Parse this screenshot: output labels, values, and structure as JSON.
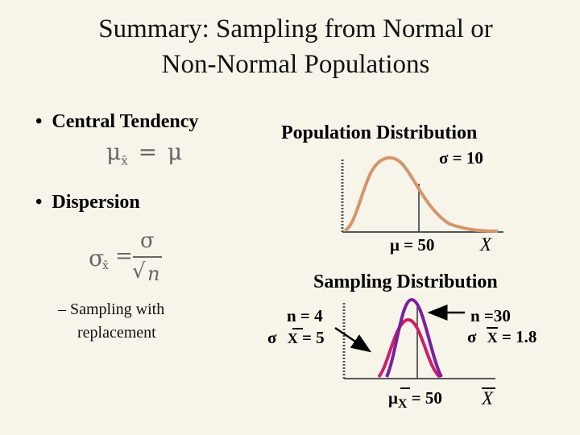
{
  "title_line1": "Summary: Sampling from Normal or",
  "title_line2": "Non-Normal Populations",
  "bullets": {
    "central": "Central Tendency",
    "dispersion": "Dispersion",
    "sub_line1": "– Sampling with",
    "sub_line2": "replacement"
  },
  "formulas": {
    "mean": {
      "mu": "μ",
      "sub": "x̄",
      "eq": "=",
      "rhs": "μ"
    },
    "se": {
      "sigma": "σ",
      "sub": "x̄",
      "eq": "=",
      "num": "σ",
      "root": "√",
      "den": "n"
    }
  },
  "population": {
    "heading": "Population Distribution",
    "sigma": "σ = 10",
    "mu": "μ = 50",
    "xvar": "X"
  },
  "sampling": {
    "heading": "Sampling Distribution",
    "left_n": "n = 4",
    "left_sigma": "σ",
    "left_x": "X",
    "left_val": "= 5",
    "right_n": "n =30",
    "right_sigma": "σ",
    "right_x": "X",
    "right_val": "= 1.8",
    "mu": "μ",
    "mu_sub": "X",
    "mu_val": "= 50",
    "xvar": "X"
  },
  "colors": {
    "population_curve": "#d4956a",
    "n4_curve": "#cc1f6a",
    "n30_curve": "#7a1fa0"
  }
}
